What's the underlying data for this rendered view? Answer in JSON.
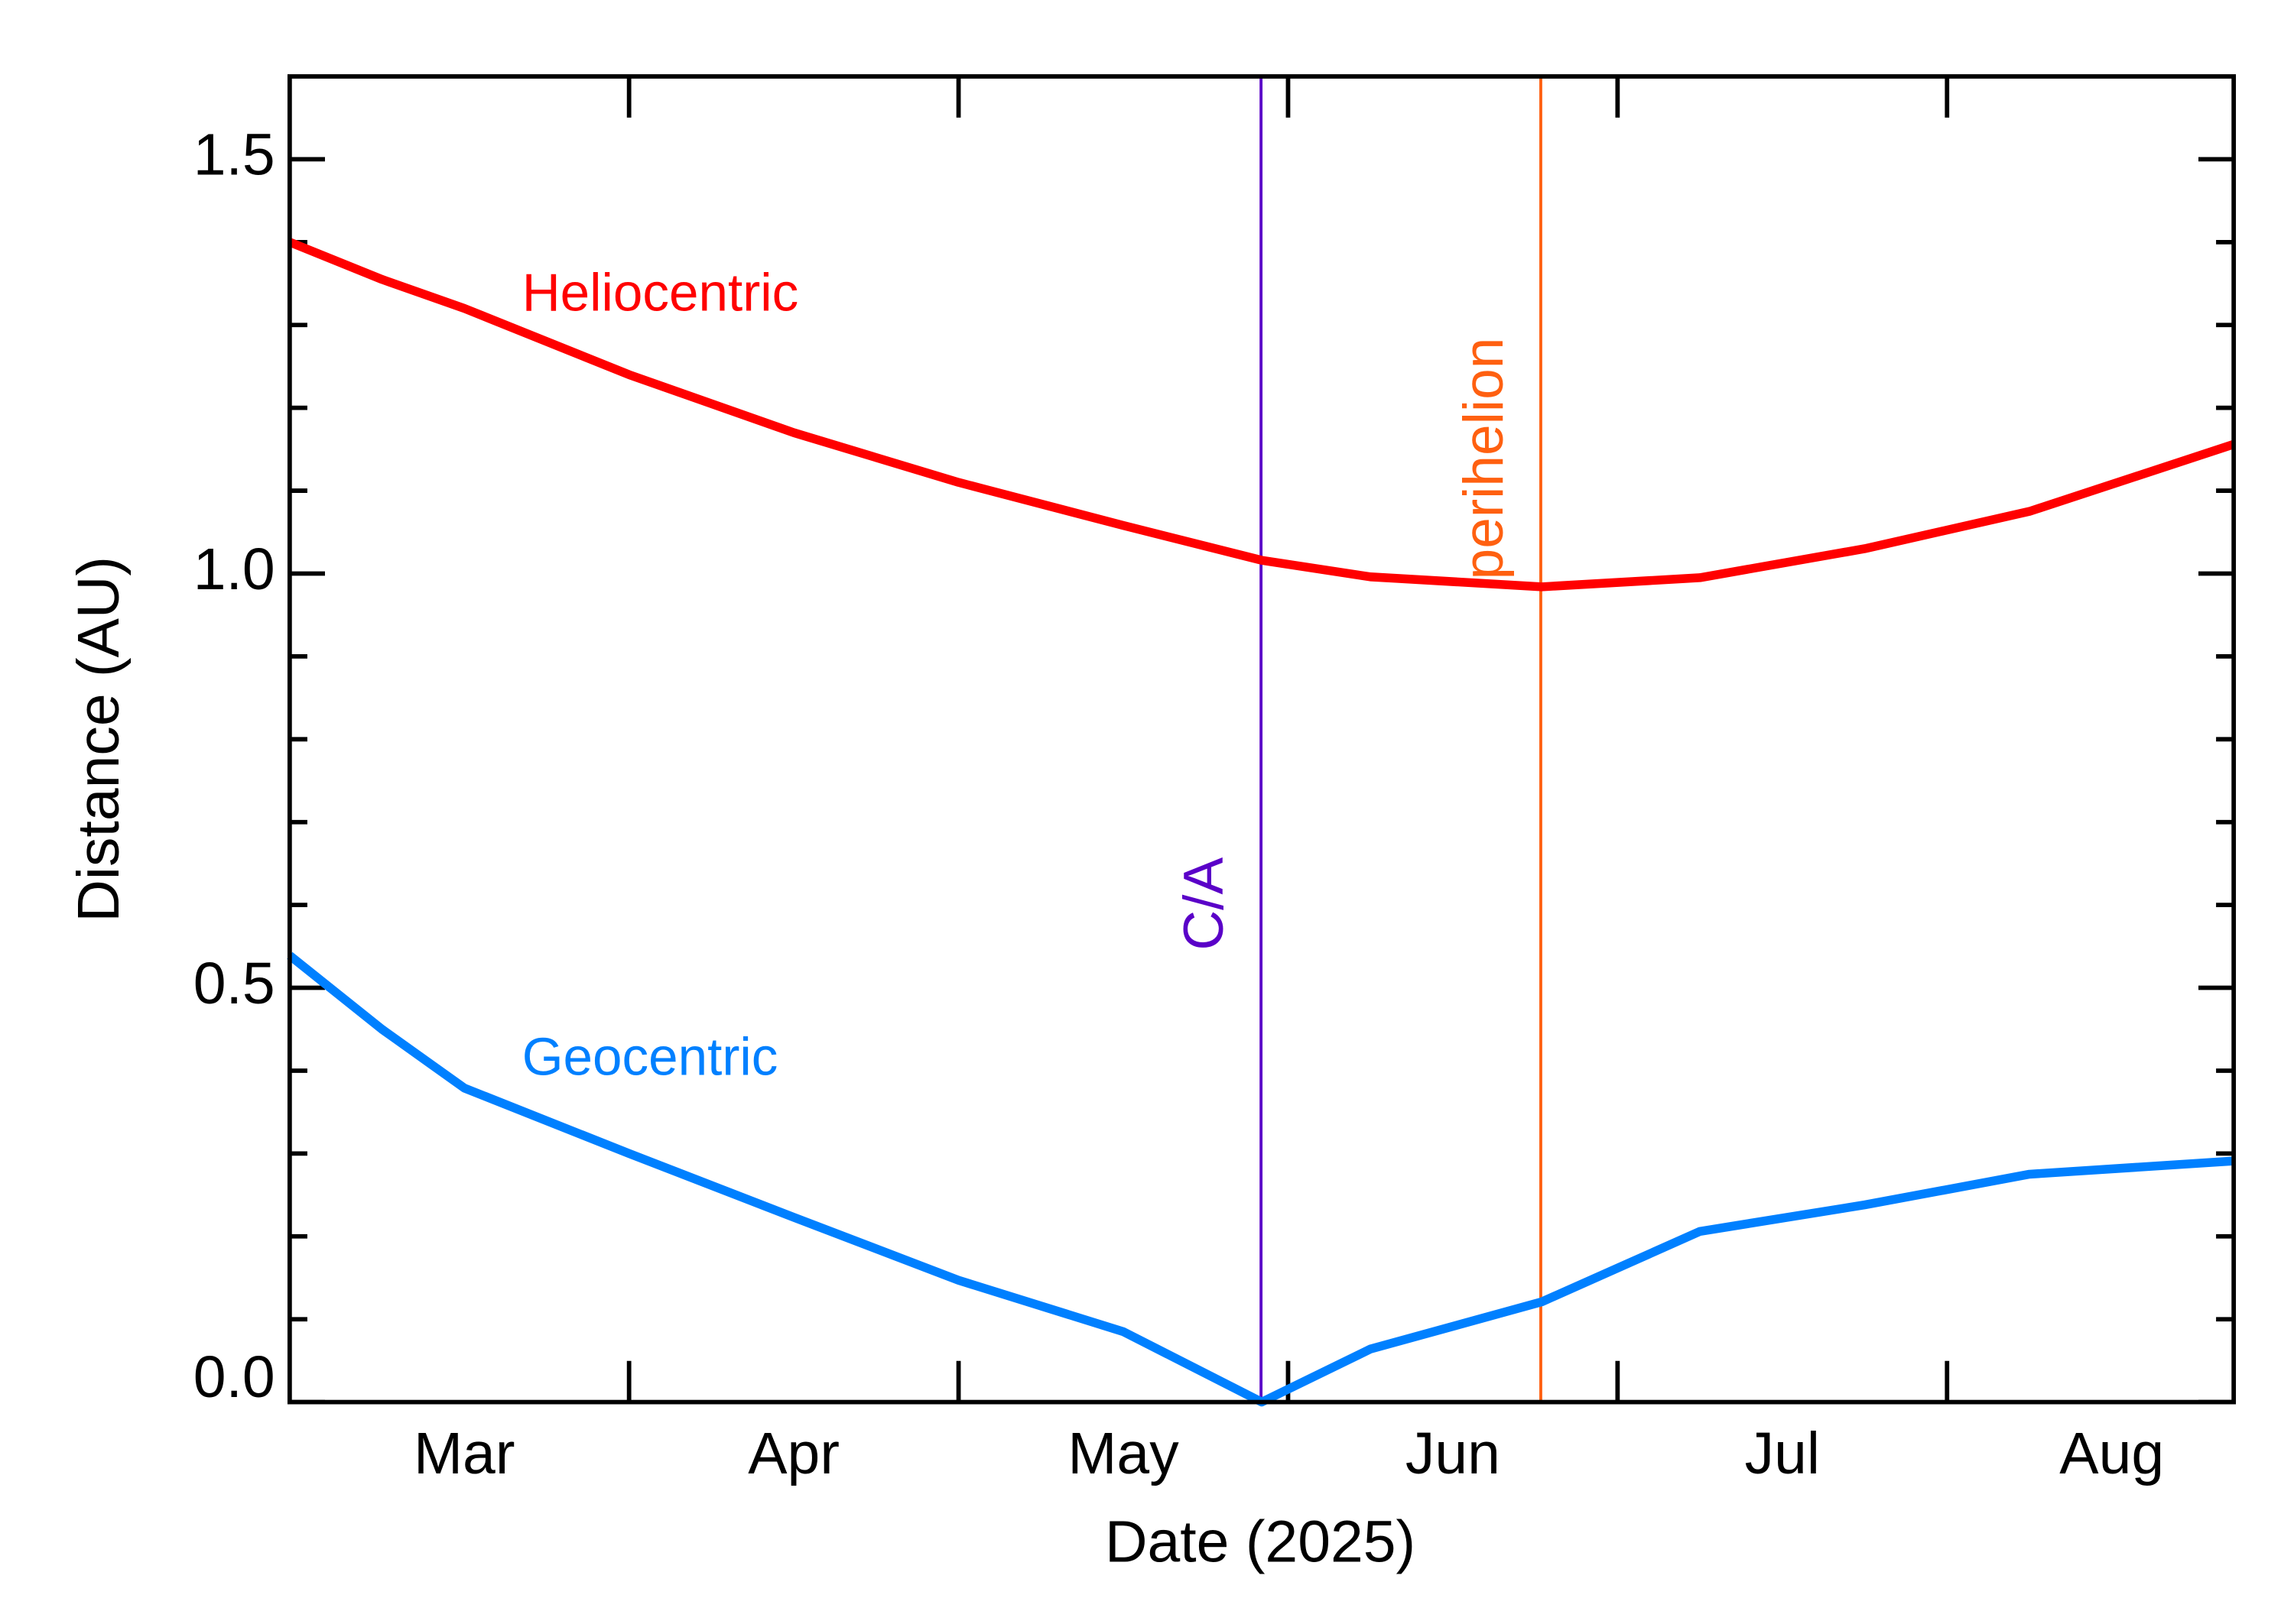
{
  "chart_data": {
    "type": "line",
    "x_label": "Date (2025)",
    "y_label": "Distance (AU)",
    "x": [
      2.97,
      3.25,
      3.5,
      4,
      4.5,
      5,
      5.5,
      5.92,
      6.25,
      6.77,
      7.25,
      7.75,
      8.25,
      8.87
    ],
    "series": [
      {
        "name": "Heliocentric",
        "color": "#ff0000",
        "values": [
          1.4,
          1.355,
          1.32,
          1.24,
          1.17,
          1.11,
          1.058,
          1.016,
          0.996,
          0.984,
          0.995,
          1.03,
          1.075,
          1.156
        ]
      },
      {
        "name": "Geocentric",
        "color": "#0080ff",
        "values": [
          0.539,
          0.45,
          0.379,
          0.3,
          0.223,
          0.147,
          0.085,
          0.0,
          0.064,
          0.121,
          0.206,
          0.238,
          0.275,
          0.291
        ]
      }
    ],
    "vlines": [
      {
        "x": 5.918,
        "label": "C/A",
        "color": "#5a00c8"
      },
      {
        "x": 6.767,
        "label": "perihelion",
        "color": "#ff6010"
      }
    ],
    "xlim": [
      2.97,
      8.87
    ],
    "xticks": [
      {
        "value": 3.5,
        "label": "Mar"
      },
      {
        "value": 4.5,
        "label": "Apr"
      },
      {
        "value": 5.5,
        "label": "May"
      },
      {
        "value": 6.5,
        "label": "Jun"
      },
      {
        "value": 7.5,
        "label": "Jul"
      },
      {
        "value": 8.5,
        "label": "Aug"
      }
    ],
    "xtick_marks": [
      4,
      5,
      6,
      7,
      8
    ],
    "ylim": [
      0,
      1.6
    ],
    "yticks": [
      {
        "value": 0,
        "label": "0.0"
      },
      0.5,
      {
        "value": 1,
        "label": "1.0"
      },
      1.5
    ],
    "yminor_ticks": [
      0.1,
      0.2,
      0.3,
      0.4,
      0.6,
      0.7,
      0.8,
      0.9,
      1.1,
      1.2,
      1.3,
      1.4
    ]
  }
}
